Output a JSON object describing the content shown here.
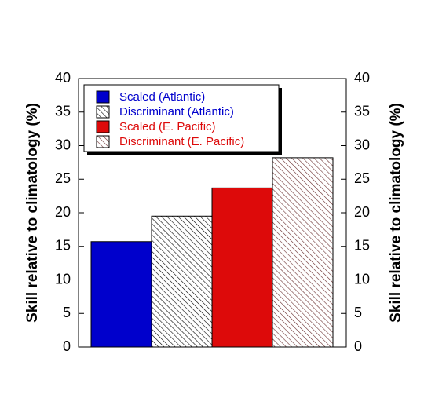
{
  "chart_data": {
    "type": "bar",
    "ylabel": "Skill relative to climatology (%)",
    "ylim": [
      0,
      40
    ],
    "yticks": [
      0,
      5,
      10,
      15,
      20,
      25,
      30,
      35,
      40
    ],
    "legend": "upper left",
    "series": [
      {
        "name": "Scaled (Atlantic)",
        "color": "#0000cc",
        "text_color": "#0000cc",
        "hatch": false,
        "values": [
          15.7
        ]
      },
      {
        "name": "Discriminant (Atlantic)",
        "color": "#000000",
        "text_color": "#0000cc",
        "hatch": true,
        "values": [
          19.5
        ]
      },
      {
        "name": "Scaled (E. Pacific)",
        "color": "#dd0a0a",
        "text_color": "#dd0a0a",
        "hatch": false,
        "values": [
          23.7
        ]
      },
      {
        "name": "Discriminant (E. Pacific)",
        "color": "#6b3030",
        "text_color": "#dd0a0a",
        "hatch": true,
        "values": [
          28.2
        ]
      }
    ]
  }
}
